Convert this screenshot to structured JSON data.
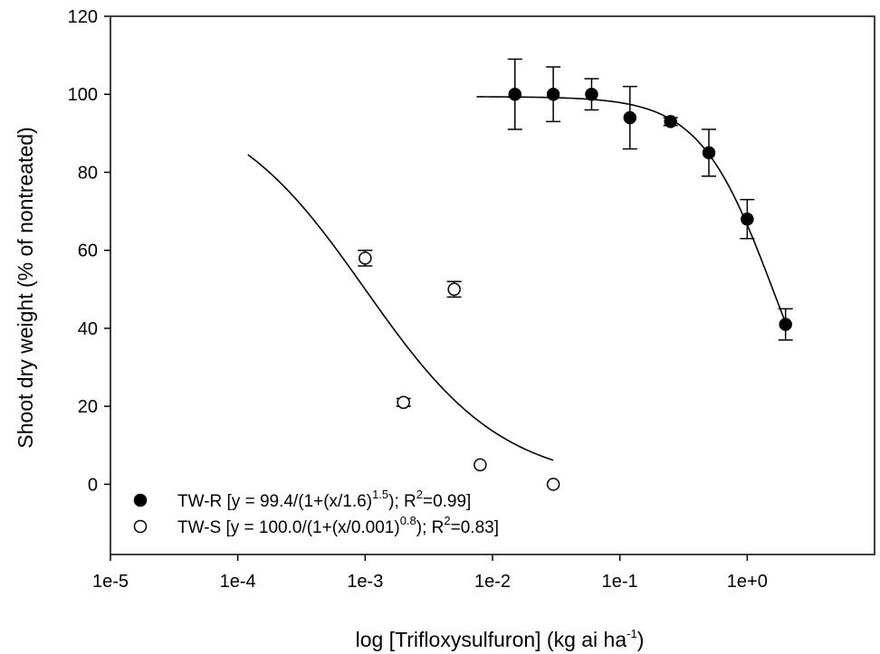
{
  "chart_data": {
    "type": "scatter",
    "title": "",
    "xlabel": {
      "prefix": "log [Trifloxysulfuron] (kg ai ha",
      "sup": "-1",
      "suffix": ")"
    },
    "ylabel": "Shoot dry weight (% of nontreated)",
    "x_scale": "log",
    "xlim": [
      1e-05,
      10
    ],
    "ylim": [
      -18,
      120
    ],
    "x_ticks": [
      1e-05,
      0.0001,
      0.001,
      0.01,
      0.1,
      1
    ],
    "x_tick_labels": [
      "1e-5",
      "1e-4",
      "1e-3",
      "1e-2",
      "1e-1",
      "1e+0"
    ],
    "y_ticks": [
      0,
      20,
      40,
      60,
      80,
      100,
      120
    ],
    "y_tick_labels": [
      "0",
      "20",
      "40",
      "60",
      "80",
      "100",
      "120"
    ],
    "grid": false,
    "legend_position": "bottom-left",
    "series": [
      {
        "name": "TW-R",
        "marker": "filled-circle",
        "color": "#000000",
        "points": [
          {
            "x": 0.015,
            "y": 100,
            "err": 9
          },
          {
            "x": 0.03,
            "y": 100,
            "err": 7
          },
          {
            "x": 0.06,
            "y": 100,
            "err": 4
          },
          {
            "x": 0.12,
            "y": 94,
            "err": 8
          },
          {
            "x": 0.25,
            "y": 93,
            "err": 1
          },
          {
            "x": 0.5,
            "y": 85,
            "err": 6
          },
          {
            "x": 1.0,
            "y": 68,
            "err": 5
          },
          {
            "x": 2.0,
            "y": 41,
            "err": 4
          }
        ],
        "fit": {
          "a": 99.4,
          "x0": 1.6,
          "b": 1.5,
          "x_range": [
            0.0075,
            2.0
          ]
        },
        "legend": {
          "prefix": "TW-R [y = 99.4/(1+(x/1.6)",
          "exp": "1.5",
          "mid": "); R",
          "r2": "2",
          "suffix": "=0.99]"
        }
      },
      {
        "name": "TW-S",
        "marker": "open-circle",
        "color": "#000000",
        "points": [
          {
            "x": 0.001,
            "y": 58,
            "err": 2
          },
          {
            "x": 0.002,
            "y": 21,
            "err": 1
          },
          {
            "x": 0.005,
            "y": 50,
            "err": 2
          },
          {
            "x": 0.008,
            "y": 5
          },
          {
            "x": 0.03,
            "y": 0
          }
        ],
        "fit": {
          "a": 100.0,
          "x0": 0.001,
          "b": 0.8,
          "x_range": [
            0.00012,
            0.03
          ]
        },
        "legend": {
          "prefix": "TW-S [y = 100.0/(1+(x/0.001)",
          "exp": "0.8",
          "mid": "); R",
          "r2": "2",
          "suffix": "=0.83]"
        }
      }
    ]
  }
}
